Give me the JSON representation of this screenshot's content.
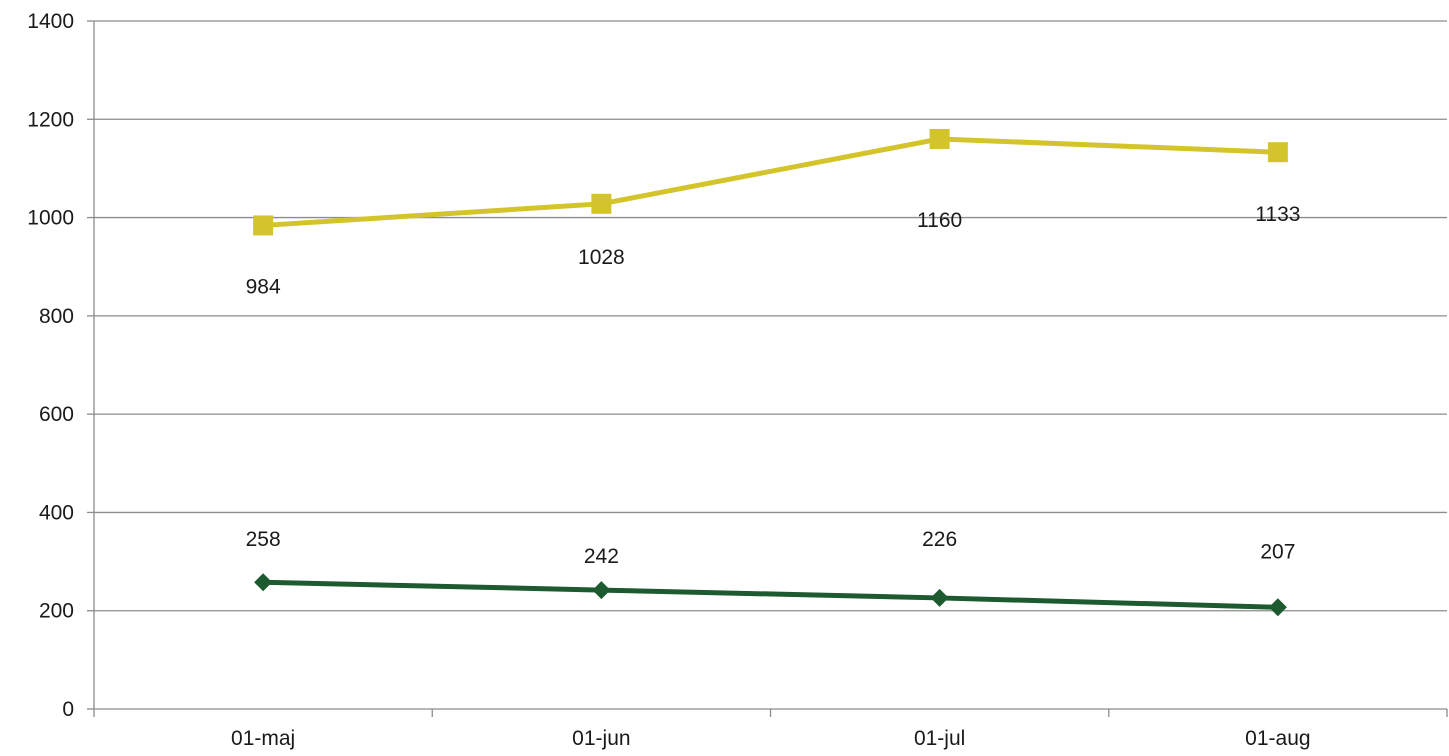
{
  "chart_data": {
    "type": "line",
    "categories": [
      "01-maj",
      "01-jun",
      "01-jul",
      "01-aug"
    ],
    "series": [
      {
        "values": [
          984,
          1028,
          1160,
          1133
        ],
        "color": "#d4c42c",
        "marker": "square"
      },
      {
        "values": [
          258,
          242,
          226,
          207
        ],
        "color": "#1d5a2f",
        "marker": "diamond"
      }
    ],
    "ylim": [
      0,
      1400
    ],
    "yticks": [
      0,
      200,
      400,
      600,
      800,
      1000,
      1200,
      1400
    ],
    "grid": true,
    "legend": "none",
    "gridline_color": "#8c8c8c"
  }
}
